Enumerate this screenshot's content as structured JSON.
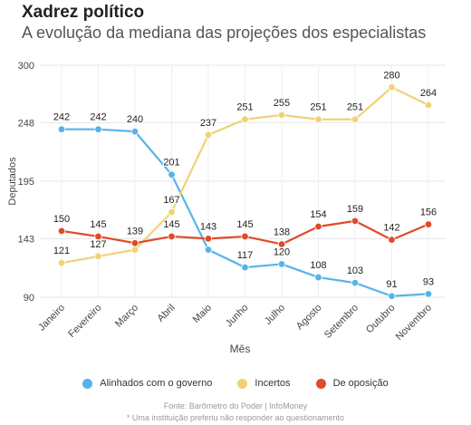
{
  "title": "Xadrez político",
  "subtitle": "A evolução da mediana das projeções dos especialistas",
  "source": "Fonte: Barômetro do Poder | InfoMoney",
  "note": "* Uma instituição preferiu não responder ao questionamento",
  "colors": {
    "governo": "#56b4e9",
    "incertos": "#f0d275",
    "oposicao": "#e04a2a"
  },
  "chart_data": {
    "type": "line",
    "categories": [
      "Janeiro",
      "Fevereiro",
      "Março",
      "Abril",
      "Maio",
      "Junho",
      "Julho",
      "Agosto",
      "Setembro",
      "Outubro",
      "Novembro"
    ],
    "xlabel": "Mês",
    "ylabel": "Deputados",
    "ylim": [
      90,
      300
    ],
    "yticks": [
      90,
      143,
      195,
      248,
      300
    ],
    "grid": true,
    "legend_position": "bottom",
    "series": [
      {
        "name": "Alinhados com o governo",
        "color": "#56b4e9",
        "values": [
          242,
          242,
          240,
          201,
          133,
          117,
          120,
          108,
          103,
          91,
          93
        ],
        "labels": [
          "242",
          "242",
          "240",
          "201",
          "",
          "117",
          "120",
          "108",
          "103",
          "91",
          "93"
        ]
      },
      {
        "name": "Incertos",
        "color": "#f0d275",
        "values": [
          121,
          127,
          133,
          167,
          237,
          251,
          255,
          251,
          251,
          280,
          264
        ],
        "labels": [
          "121",
          "127",
          "",
          "167",
          "237",
          "251",
          "255",
          "251",
          "251",
          "280",
          "264"
        ]
      },
      {
        "name": "De oposição",
        "color": "#e04a2a",
        "values": [
          150,
          145,
          139,
          145,
          143,
          145,
          138,
          154,
          159,
          142,
          156
        ],
        "labels": [
          "150",
          "145",
          "139",
          "145",
          "143",
          "145",
          "138",
          "154",
          "159",
          "142",
          "156"
        ]
      }
    ]
  }
}
